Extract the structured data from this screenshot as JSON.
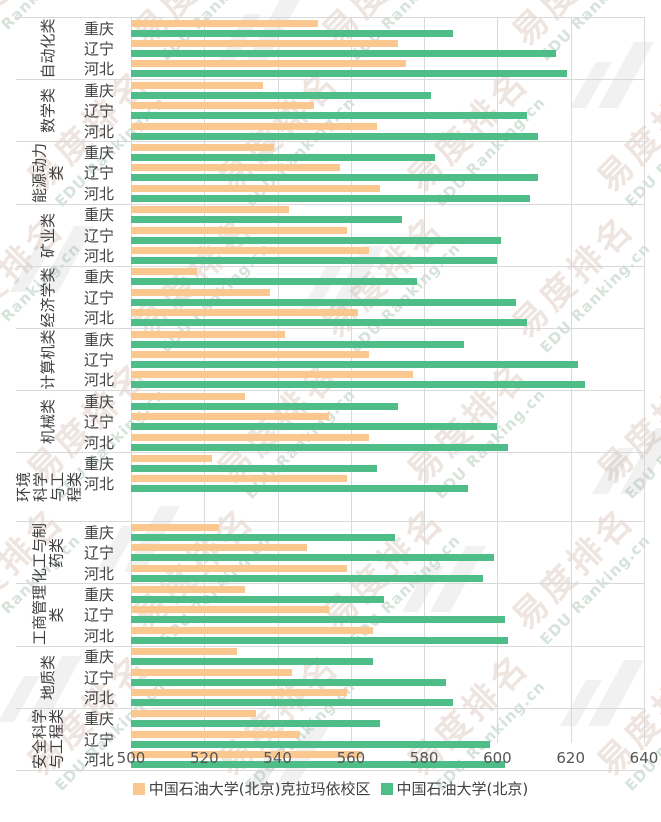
{
  "watermark": {
    "brand_cn": "易度排名",
    "brand_en": "EDU Ranking.cn"
  },
  "colors": {
    "campus_series": "#FAC88E",
    "main_series": "#4FBD88",
    "gridline": "#d9d9d9",
    "label_text": "#3f3f3f",
    "tick_text": "#555555"
  },
  "chart_data": {
    "type": "bar",
    "orientation": "horizontal",
    "grid": true,
    "legend_position": "bottom",
    "xlim": [
      500,
      640
    ],
    "x_ticks": [
      "500",
      "520",
      "540",
      "560",
      "580",
      "600",
      "620",
      "640"
    ],
    "series_names": [
      "中国石油大学(北京)克拉玛依校区",
      "中国石油大学(北京)"
    ],
    "series_colors": [
      "#FAC88E",
      "#4FBD88"
    ],
    "groups": [
      {
        "category": "自动化类",
        "rows": [
          {
            "province": "重庆",
            "values": [
              551,
              588
            ]
          },
          {
            "province": "辽宁",
            "values": [
              573,
              616
            ]
          },
          {
            "province": "河北",
            "values": [
              575,
              619
            ]
          }
        ]
      },
      {
        "category": "数学类",
        "rows": [
          {
            "province": "重庆",
            "values": [
              536,
              582
            ]
          },
          {
            "province": "辽宁",
            "values": [
              550,
              608
            ]
          },
          {
            "province": "河北",
            "values": [
              567,
              611
            ]
          }
        ]
      },
      {
        "category": "能源动力类",
        "rows": [
          {
            "province": "重庆",
            "values": [
              539,
              583
            ]
          },
          {
            "province": "辽宁",
            "values": [
              557,
              611
            ]
          },
          {
            "province": "河北",
            "values": [
              568,
              609
            ]
          }
        ]
      },
      {
        "category": "矿业类",
        "rows": [
          {
            "province": "重庆",
            "values": [
              543,
              574
            ]
          },
          {
            "province": "辽宁",
            "values": [
              559,
              601
            ]
          },
          {
            "province": "河北",
            "values": [
              565,
              600
            ]
          }
        ]
      },
      {
        "category": "经济学类",
        "rows": [
          {
            "province": "重庆",
            "values": [
              518,
              578
            ]
          },
          {
            "province": "辽宁",
            "values": [
              538,
              605
            ]
          },
          {
            "province": "河北",
            "values": [
              562,
              608
            ]
          }
        ]
      },
      {
        "category": "计算机类",
        "rows": [
          {
            "province": "重庆",
            "values": [
              542,
              591
            ]
          },
          {
            "province": "辽宁",
            "values": [
              565,
              622
            ]
          },
          {
            "province": "河北",
            "values": [
              577,
              624
            ]
          }
        ]
      },
      {
        "category": "机械类",
        "rows": [
          {
            "province": "重庆",
            "values": [
              531,
              573
            ]
          },
          {
            "province": "辽宁",
            "values": [
              554,
              600
            ]
          },
          {
            "province": "河北",
            "values": [
              565,
              603
            ]
          }
        ]
      },
      {
        "category": "环境科学与工程类",
        "rows": [
          {
            "province": "重庆",
            "values": [
              522,
              567
            ]
          },
          {
            "province": "河北",
            "values": [
              559,
              592
            ]
          }
        ]
      },
      {
        "category": "化工与制药类",
        "rows": [
          {
            "province": "重庆",
            "values": [
              524,
              572
            ]
          },
          {
            "province": "辽宁",
            "values": [
              548,
              599
            ]
          },
          {
            "province": "河北",
            "values": [
              559,
              596
            ]
          }
        ]
      },
      {
        "category": "工商管理类",
        "rows": [
          {
            "province": "重庆",
            "values": [
              531,
              569
            ]
          },
          {
            "province": "辽宁",
            "values": [
              554,
              602
            ]
          },
          {
            "province": "河北",
            "values": [
              566,
              603
            ]
          }
        ]
      },
      {
        "category": "地质类",
        "rows": [
          {
            "province": "重庆",
            "values": [
              529,
              566
            ]
          },
          {
            "province": "辽宁",
            "values": [
              544,
              586
            ]
          },
          {
            "province": "河北",
            "values": [
              559,
              588
            ]
          }
        ]
      },
      {
        "category": "安全科学与工程类",
        "rows": [
          {
            "province": "重庆",
            "values": [
              534,
              568
            ]
          },
          {
            "province": "辽宁",
            "values": [
              546,
              598
            ]
          },
          {
            "province": "河北",
            "values": [
              563,
              602
            ]
          }
        ]
      }
    ]
  }
}
